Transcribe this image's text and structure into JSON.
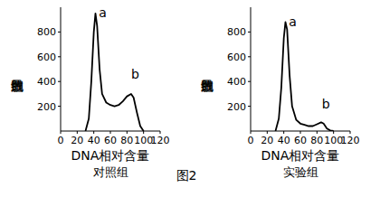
{
  "chart_data": [
    {
      "type": "line",
      "title": "对照组",
      "x_label": "DNA相对含量",
      "y_label": "细胞数目",
      "x": [
        30,
        34,
        37,
        40,
        42,
        44,
        47,
        50,
        55,
        60,
        65,
        70,
        75,
        80,
        85,
        88,
        92,
        96,
        100
      ],
      "values": [
        0,
        100,
        400,
        800,
        950,
        850,
        500,
        300,
        230,
        210,
        200,
        210,
        240,
        280,
        300,
        270,
        150,
        40,
        0
      ],
      "color": "#000000",
      "xlim": [
        0,
        120
      ],
      "xticks": [
        0,
        20,
        40,
        60,
        80,
        100,
        120
      ],
      "ylim": [
        0,
        1000
      ],
      "yticks": [
        200,
        400,
        600,
        800
      ],
      "annotations": [
        {
          "text": "a",
          "x": 46,
          "y": 920
        },
        {
          "text": "b",
          "x": 85,
          "y": 420
        }
      ]
    },
    {
      "type": "line",
      "title": "实验组",
      "x_label": "DNA相对含量",
      "y_label": "细胞数目",
      "x": [
        30,
        34,
        37,
        40,
        42,
        44,
        47,
        50,
        55,
        60,
        65,
        70,
        75,
        80,
        85,
        88,
        92,
        96,
        100
      ],
      "values": [
        0,
        100,
        350,
        750,
        880,
        820,
        450,
        200,
        90,
        60,
        50,
        40,
        40,
        55,
        70,
        60,
        20,
        5,
        0
      ],
      "color": "#000000",
      "xlim": [
        0,
        120
      ],
      "xticks": [
        0,
        20,
        40,
        60,
        80,
        100,
        120
      ],
      "ylim": [
        0,
        1000
      ],
      "yticks": [
        200,
        400,
        600,
        800
      ],
      "annotations": [
        {
          "text": "a",
          "x": 46,
          "y": 850
        },
        {
          "text": "b",
          "x": 86,
          "y": 180
        }
      ]
    }
  ],
  "figure_caption": "图2"
}
